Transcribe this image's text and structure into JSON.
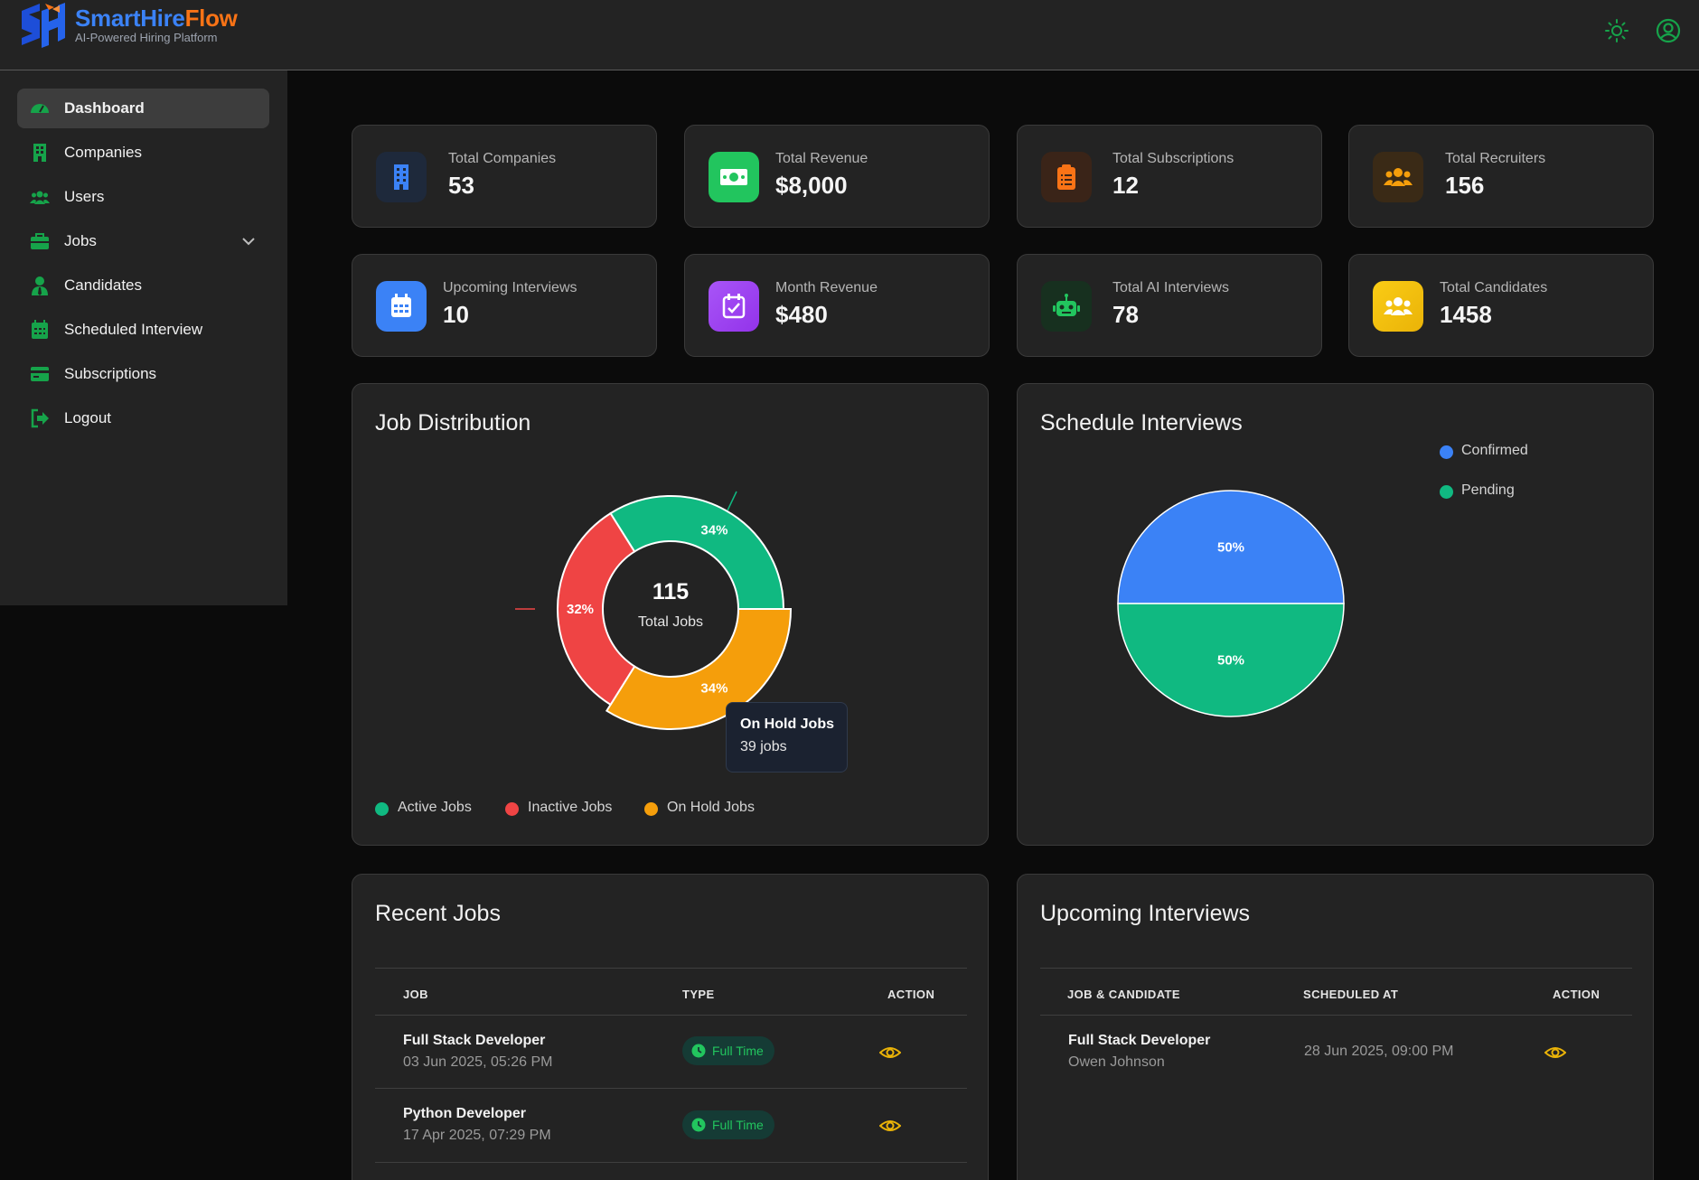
{
  "brand": {
    "name_part1": "SmartHire",
    "name_part2": "Flow",
    "tagline": "AI-Powered Hiring Platform"
  },
  "header": {
    "theme_icon": "sun-icon",
    "profile_icon": "user-circle-icon"
  },
  "sidebar": {
    "items": [
      {
        "label": "Dashboard",
        "icon": "gauge-icon",
        "active": true
      },
      {
        "label": "Companies",
        "icon": "building-icon"
      },
      {
        "label": "Users",
        "icon": "users-icon"
      },
      {
        "label": "Jobs",
        "icon": "briefcase-icon",
        "has_children": true
      },
      {
        "label": "Candidates",
        "icon": "user-tie-icon"
      },
      {
        "label": "Scheduled Interview",
        "icon": "calendar-icon"
      },
      {
        "label": "Subscriptions",
        "icon": "credit-card-icon"
      },
      {
        "label": "Logout",
        "icon": "logout-icon"
      }
    ]
  },
  "stats": [
    {
      "label": "Total Companies",
      "value": "53",
      "icon": "building-icon",
      "color": "#3b82f6"
    },
    {
      "label": "Total Revenue",
      "value": "$8,000",
      "icon": "money-icon",
      "color": "#22c55e"
    },
    {
      "label": "Total Subscriptions",
      "value": "12",
      "icon": "clipboard-icon",
      "color": "#f97316"
    },
    {
      "label": "Total Recruiters",
      "value": "156",
      "icon": "users-icon",
      "color": "#f59e0b"
    },
    {
      "label": "Upcoming Interviews",
      "value": "10",
      "icon": "calendar-icon",
      "color": "#3b82f6"
    },
    {
      "label": "Month Revenue",
      "value": "$480",
      "icon": "calendar-check-icon",
      "color": "#a855f7"
    },
    {
      "label": "Total AI Interviews",
      "value": "78",
      "icon": "robot-icon",
      "color": "#22c55e"
    },
    {
      "label": "Total Candidates",
      "value": "1458",
      "icon": "users-icon",
      "color": "#eab308"
    }
  ],
  "job_distribution": {
    "title": "Job Distribution",
    "center_value": "115",
    "center_label": "Total Jobs",
    "tooltip": {
      "title": "On Hold Jobs",
      "text": "39 jobs"
    }
  },
  "schedule_interviews": {
    "title": "Schedule Interviews"
  },
  "chart_data": [
    {
      "type": "pie",
      "variant": "doughnut",
      "title": "Job Distribution",
      "categories": [
        "Active Jobs",
        "Inactive Jobs",
        "On Hold Jobs"
      ],
      "values": [
        39,
        37,
        39
      ],
      "labels": [
        "34%",
        "32%",
        "34%"
      ],
      "colors": [
        "#10b981",
        "#ef4444",
        "#f59e0b"
      ],
      "highlighted": "On Hold Jobs",
      "legend_position": "bottom"
    },
    {
      "type": "pie",
      "title": "Schedule Interviews",
      "categories": [
        "Confirmed",
        "Pending"
      ],
      "values": [
        50,
        50
      ],
      "labels": [
        "50%",
        "50%"
      ],
      "colors": [
        "#3b82f6",
        "#10b981"
      ],
      "legend_position": "top-right"
    }
  ],
  "recent_jobs": {
    "title": "Recent Jobs",
    "columns": [
      "JOB",
      "TYPE",
      "ACTION"
    ],
    "rows": [
      {
        "title": "Full Stack Developer",
        "date": "03 Jun 2025, 05:26 PM",
        "type": "Full Time"
      },
      {
        "title": "Python Developer",
        "date": "17 Apr 2025, 07:29 PM",
        "type": "Full Time"
      }
    ]
  },
  "upcoming_interviews": {
    "title": "Upcoming Interviews",
    "columns": [
      "JOB & CANDIDATE",
      "SCHEDULED AT",
      "ACTION"
    ],
    "rows": [
      {
        "job": "Full Stack Developer",
        "candidate": "Owen Johnson",
        "scheduled": "28 Jun 2025, 09:00 PM"
      }
    ]
  }
}
